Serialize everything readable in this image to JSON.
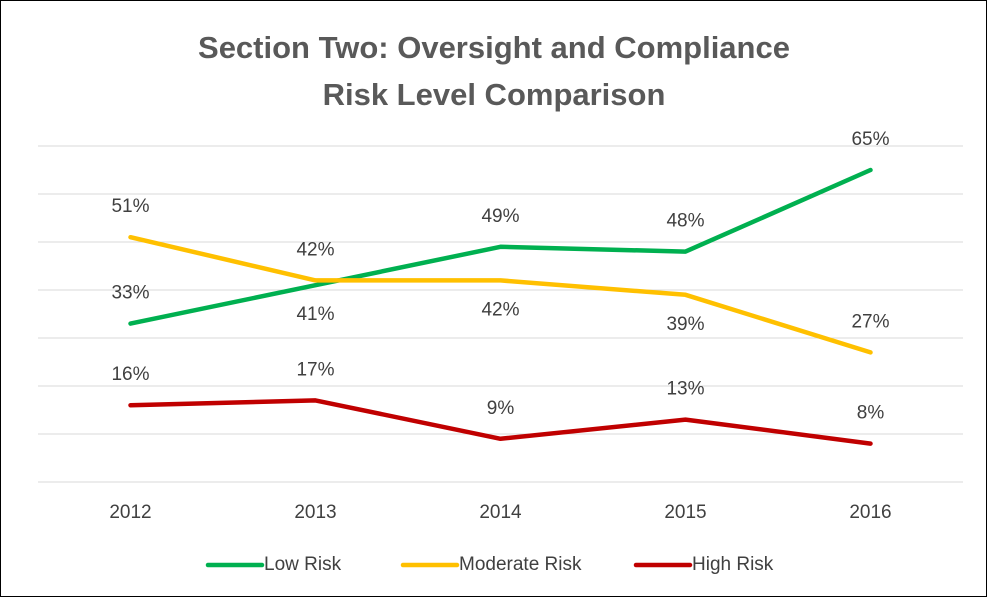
{
  "chart_data": {
    "type": "line",
    "title": [
      "Section Two: Oversight and Compliance",
      "Risk Level Comparison"
    ],
    "categories": [
      "2012",
      "2013",
      "2014",
      "2015",
      "2016"
    ],
    "series": [
      {
        "name": "Low Risk",
        "color": "#00b050",
        "values": [
          33,
          41,
          49,
          48,
          65
        ],
        "value_labels": [
          "33%",
          "41%",
          "49%",
          "48%",
          "65%"
        ]
      },
      {
        "name": "Moderate Risk",
        "color": "#ffc000",
        "values": [
          51,
          42,
          42,
          39,
          27
        ],
        "value_labels": [
          "51%",
          "42%",
          "42%",
          "39%",
          "27%"
        ]
      },
      {
        "name": "High Risk",
        "color": "#c00000",
        "values": [
          16,
          17,
          9,
          13,
          8
        ],
        "value_labels": [
          "16%",
          "17%",
          "9%",
          "13%",
          "8%"
        ]
      }
    ],
    "ylim": [
      0,
      70
    ],
    "yticks": [
      0,
      10,
      20,
      30,
      40,
      50,
      60,
      70
    ],
    "grid": true,
    "legend": "bottom"
  }
}
